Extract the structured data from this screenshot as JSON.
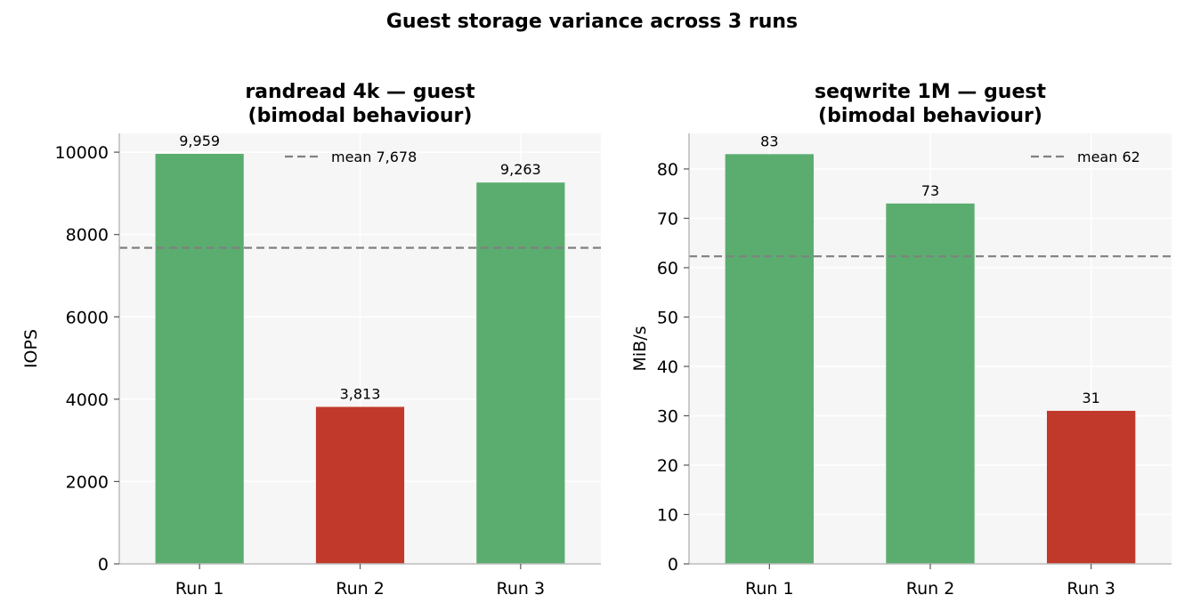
{
  "figure": {
    "title": "Guest storage variance across 3 runs"
  },
  "colors": {
    "good": "#5bad6f",
    "bad": "#c0392b",
    "mean_line": "#808080",
    "plot_bg": "#f6f6f6",
    "grid": "#ffffff",
    "axis": "#bbbbbb"
  },
  "chart_data": [
    {
      "type": "bar",
      "title_line1": "randread 4k — guest",
      "title_line2": "(bimodal behaviour)",
      "title": "randread 4k — guest (bimodal behaviour)",
      "categories": [
        "Run 1",
        "Run 2",
        "Run 3"
      ],
      "values": [
        9959,
        3813,
        9263
      ],
      "value_labels": [
        "9,959",
        "3,813",
        "9,263"
      ],
      "bar_status": [
        "good",
        "bad",
        "good"
      ],
      "xlabel": "",
      "ylabel": "IOPS",
      "ylim": [
        0,
        10456
      ],
      "yticks": [
        0,
        2000,
        4000,
        6000,
        8000,
        10000
      ],
      "ytick_labels": [
        "0",
        "2000",
        "4000",
        "6000",
        "8000",
        "10000"
      ],
      "mean": 7678,
      "legend_label": "mean  7,678",
      "legend_position": "top-center",
      "grid": true
    },
    {
      "type": "bar",
      "title_line1": "seqwrite 1M — guest",
      "title_line2": "(bimodal behaviour)",
      "title": "seqwrite 1M — guest (bimodal behaviour)",
      "categories": [
        "Run 1",
        "Run 2",
        "Run 3"
      ],
      "values": [
        83,
        73,
        31
      ],
      "value_labels": [
        "83",
        "73",
        "31"
      ],
      "bar_status": [
        "good",
        "good",
        "bad"
      ],
      "xlabel": "",
      "ylabel": "MiB/s",
      "ylim": [
        0,
        87.2
      ],
      "yticks": [
        0,
        10,
        20,
        30,
        40,
        50,
        60,
        70,
        80
      ],
      "ytick_labels": [
        "0",
        "10",
        "20",
        "30",
        "40",
        "50",
        "60",
        "70",
        "80"
      ],
      "mean": 62.3,
      "legend_label": "mean  62",
      "legend_position": "top-right",
      "grid": true
    }
  ]
}
